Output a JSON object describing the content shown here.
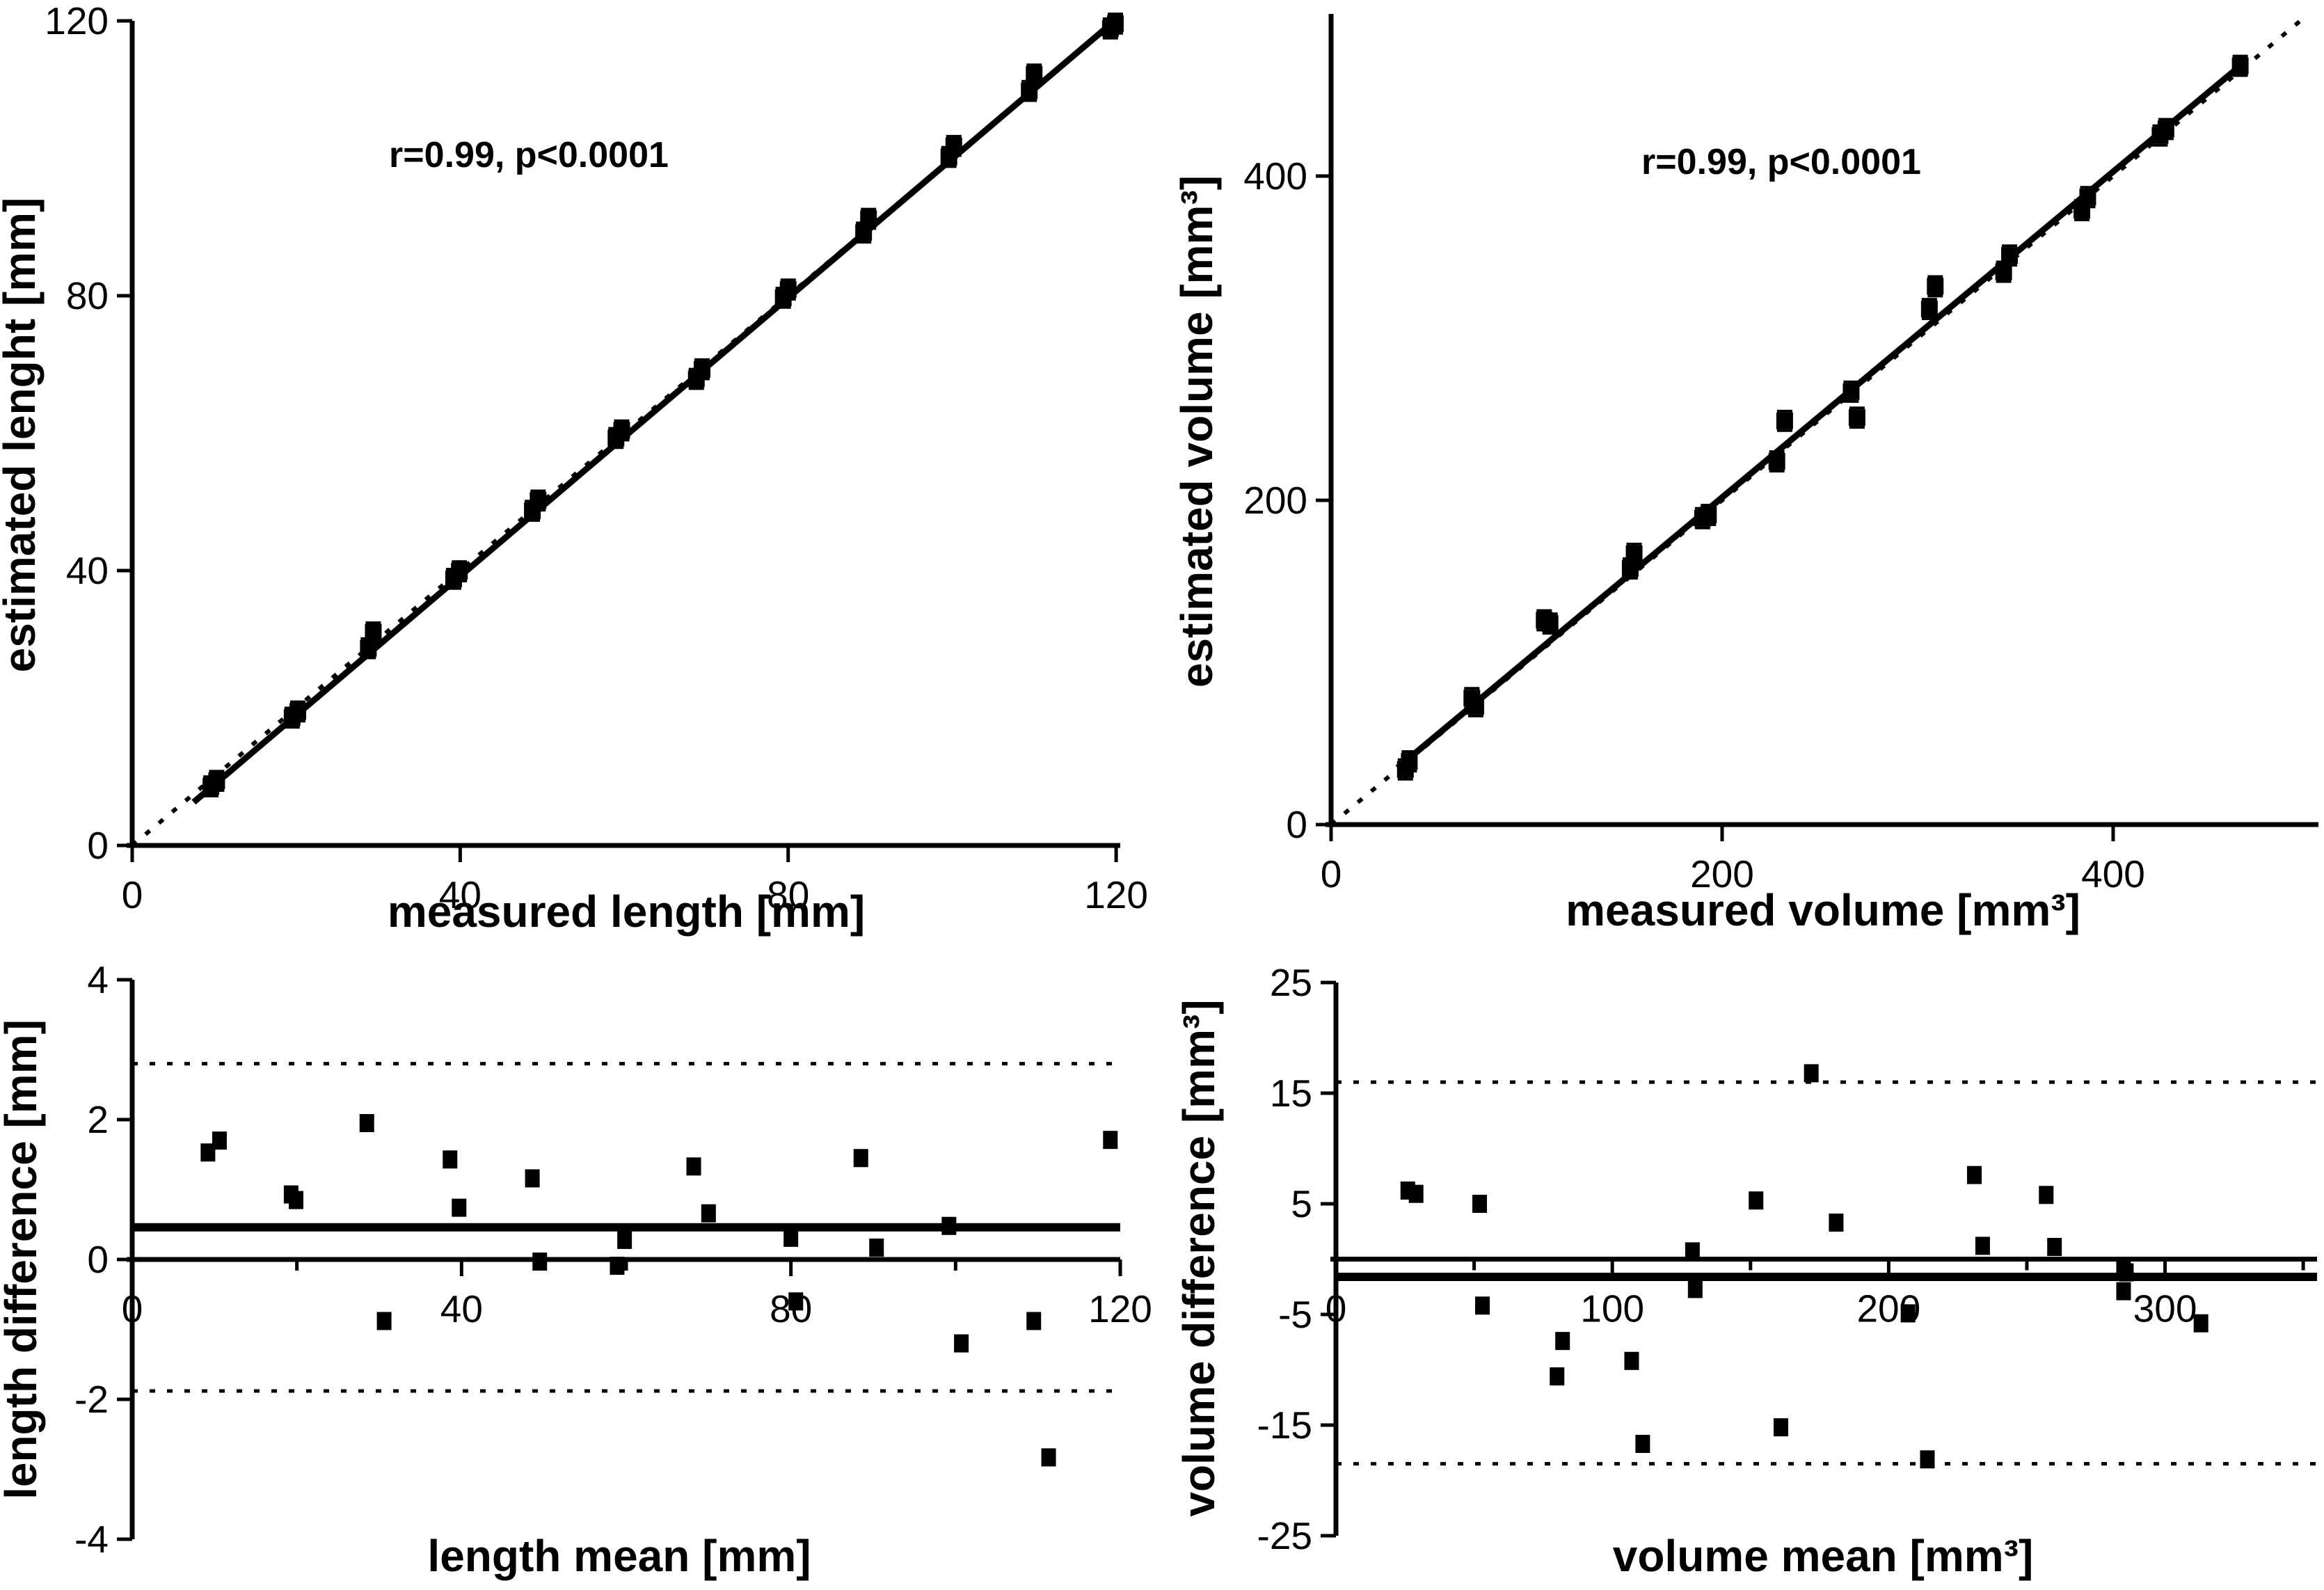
{
  "figure": {
    "background": "#ffffff",
    "ink": "#000000"
  },
  "chart_data": [
    {
      "id": "length-correlation",
      "type": "scatter",
      "annotation": "r=0.99, p<0.0001",
      "xlabel": "measured length [mm]",
      "ylabel": "estimated lenght [mm]",
      "xlim": [
        0,
        120.5
      ],
      "ylim": [
        0,
        120
      ],
      "xticks": [
        0,
        40,
        80,
        120
      ],
      "xticks_minor": [],
      "yticks": [
        0,
        40,
        80,
        120
      ],
      "yerr": 1.4,
      "lines": [
        {
          "kind": "identity",
          "style": "dotted",
          "x1": 0,
          "y1": 0,
          "x2": 120.5,
          "y2": 120.5
        },
        {
          "kind": "regression",
          "style": "solid",
          "x1": 7.5,
          "y1": 6.3,
          "x2": 120.4,
          "y2": 120.6
        }
      ],
      "points": [
        [
          9.6,
          8.6
        ],
        [
          10.3,
          9.4
        ],
        [
          19.5,
          18.6
        ],
        [
          20.2,
          19.5
        ],
        [
          28.8,
          28.7
        ],
        [
          29.4,
          31.0
        ],
        [
          39.2,
          38.8
        ],
        [
          39.9,
          39.9
        ],
        [
          48.8,
          48.7
        ],
        [
          49.5,
          50.2
        ],
        [
          59.0,
          59.3
        ],
        [
          59.7,
          60.4
        ],
        [
          68.8,
          67.9
        ],
        [
          69.5,
          69.3
        ],
        [
          79.4,
          79.7
        ],
        [
          80.0,
          80.9
        ],
        [
          89.2,
          89.2
        ],
        [
          89.8,
          91.2
        ],
        [
          99.6,
          100.2
        ],
        [
          100.2,
          101.8
        ],
        [
          109.4,
          109.8
        ],
        [
          110.0,
          112.2
        ],
        [
          119.3,
          118.9
        ],
        [
          119.9,
          119.6
        ]
      ]
    },
    {
      "id": "volume-correlation",
      "type": "scatter",
      "annotation": "r=0.99, p<0.0001",
      "xlabel": "measured volume [mm³]",
      "ylabel": "estimated volume [mm³]",
      "xlim": [
        0,
        505
      ],
      "ylim": [
        0,
        500
      ],
      "xticks": [
        0,
        200,
        400
      ],
      "xticks_minor": [],
      "yticks": [
        0,
        200,
        400
      ],
      "yerr": 6,
      "lines": [
        {
          "kind": "identity",
          "style": "dotted",
          "x1": 0,
          "y1": 0,
          "x2": 499,
          "y2": 499
        },
        {
          "kind": "regression",
          "style": "solid",
          "x1": 34,
          "y1": 35,
          "x2": 467,
          "y2": 470
        }
      ],
      "points": [
        [
          38,
          34
        ],
        [
          40,
          39
        ],
        [
          72,
          78
        ],
        [
          74,
          73
        ],
        [
          109,
          126
        ],
        [
          112,
          124
        ],
        [
          153,
          158
        ],
        [
          155,
          167
        ],
        [
          190,
          189
        ],
        [
          193,
          191
        ],
        [
          228,
          224
        ],
        [
          232,
          249
        ],
        [
          266,
          267
        ],
        [
          269,
          251
        ],
        [
          306,
          318
        ],
        [
          309,
          332
        ],
        [
          344,
          341
        ],
        [
          347,
          351
        ],
        [
          384,
          379
        ],
        [
          387,
          387
        ],
        [
          424,
          425
        ],
        [
          427,
          429
        ],
        [
          465,
          468
        ]
      ]
    },
    {
      "id": "length-bland-altman",
      "type": "scatter",
      "annotation": "",
      "xlabel": "length mean [mm]",
      "ylabel": "length difference [mm]",
      "xlim": [
        0,
        120
      ],
      "ylim": [
        -4,
        4
      ],
      "xaxis_at": 0,
      "xticks": [
        0,
        40,
        80,
        120
      ],
      "xticks_minor": [
        20,
        60,
        100
      ],
      "yticks": [
        4,
        2,
        0,
        -2,
        -4
      ],
      "yerr": 0,
      "lines": [
        {
          "kind": "mean",
          "style": "solid",
          "y": 0.46
        },
        {
          "kind": "loa-upper",
          "style": "dotted",
          "y": 2.8
        },
        {
          "kind": "loa-lower",
          "style": "dotted",
          "y": -1.88
        }
      ],
      "points": [
        [
          9.2,
          1.53
        ],
        [
          10.6,
          1.7
        ],
        [
          19.3,
          0.93
        ],
        [
          19.9,
          0.85
        ],
        [
          28.5,
          1.95
        ],
        [
          30.6,
          -0.88
        ],
        [
          38.6,
          1.43
        ],
        [
          39.7,
          0.74
        ],
        [
          48.6,
          1.16
        ],
        [
          49.5,
          -0.03
        ],
        [
          58.9,
          -0.09
        ],
        [
          59.8,
          0.28
        ],
        [
          68.2,
          1.33
        ],
        [
          70.0,
          0.66
        ],
        [
          80.0,
          0.31
        ],
        [
          80.6,
          -0.6
        ],
        [
          88.5,
          1.45
        ],
        [
          90.4,
          0.17
        ],
        [
          99.2,
          0.48
        ],
        [
          100.7,
          -1.2
        ],
        [
          109.5,
          -0.88
        ],
        [
          111.3,
          -2.83
        ],
        [
          118.8,
          1.71
        ]
      ]
    },
    {
      "id": "volume-bland-altman",
      "type": "scatter",
      "annotation": "",
      "xlabel": "volume mean [mm³]",
      "ylabel": "volume difference [mm³]",
      "xlim": [
        0,
        355
      ],
      "ylim": [
        -25,
        25
      ],
      "xaxis_at": 0,
      "xticks": [
        0,
        100,
        200,
        300
      ],
      "xticks_minor": [
        50,
        150,
        250,
        350
      ],
      "yticks": [
        25,
        15,
        5,
        -5,
        -15,
        -25
      ],
      "yerr": 0,
      "lines": [
        {
          "kind": "mean",
          "style": "solid",
          "y": -1.6
        },
        {
          "kind": "loa-upper",
          "style": "dotted",
          "y": 16.0
        },
        {
          "kind": "loa-lower",
          "style": "dotted",
          "y": -18.5
        }
      ],
      "points": [
        [
          26,
          6.2
        ],
        [
          29,
          5.9
        ],
        [
          52,
          5.0
        ],
        [
          53,
          -4.2
        ],
        [
          80,
          -10.6
        ],
        [
          82,
          -7.4
        ],
        [
          107,
          -9.2
        ],
        [
          111,
          -16.7
        ],
        [
          129,
          0.7
        ],
        [
          130,
          -2.7
        ],
        [
          152,
          5.3
        ],
        [
          161,
          -15.2
        ],
        [
          172,
          16.8
        ],
        [
          181,
          3.3
        ],
        [
          207,
          -4.9
        ],
        [
          214,
          -18.1
        ],
        [
          231,
          7.6
        ],
        [
          234,
          1.2
        ],
        [
          257,
          5.8
        ],
        [
          260,
          1.1
        ],
        [
          285,
          -0.6
        ],
        [
          286,
          -1.2
        ],
        [
          285,
          -2.9
        ],
        [
          313,
          -5.8
        ]
      ]
    }
  ]
}
